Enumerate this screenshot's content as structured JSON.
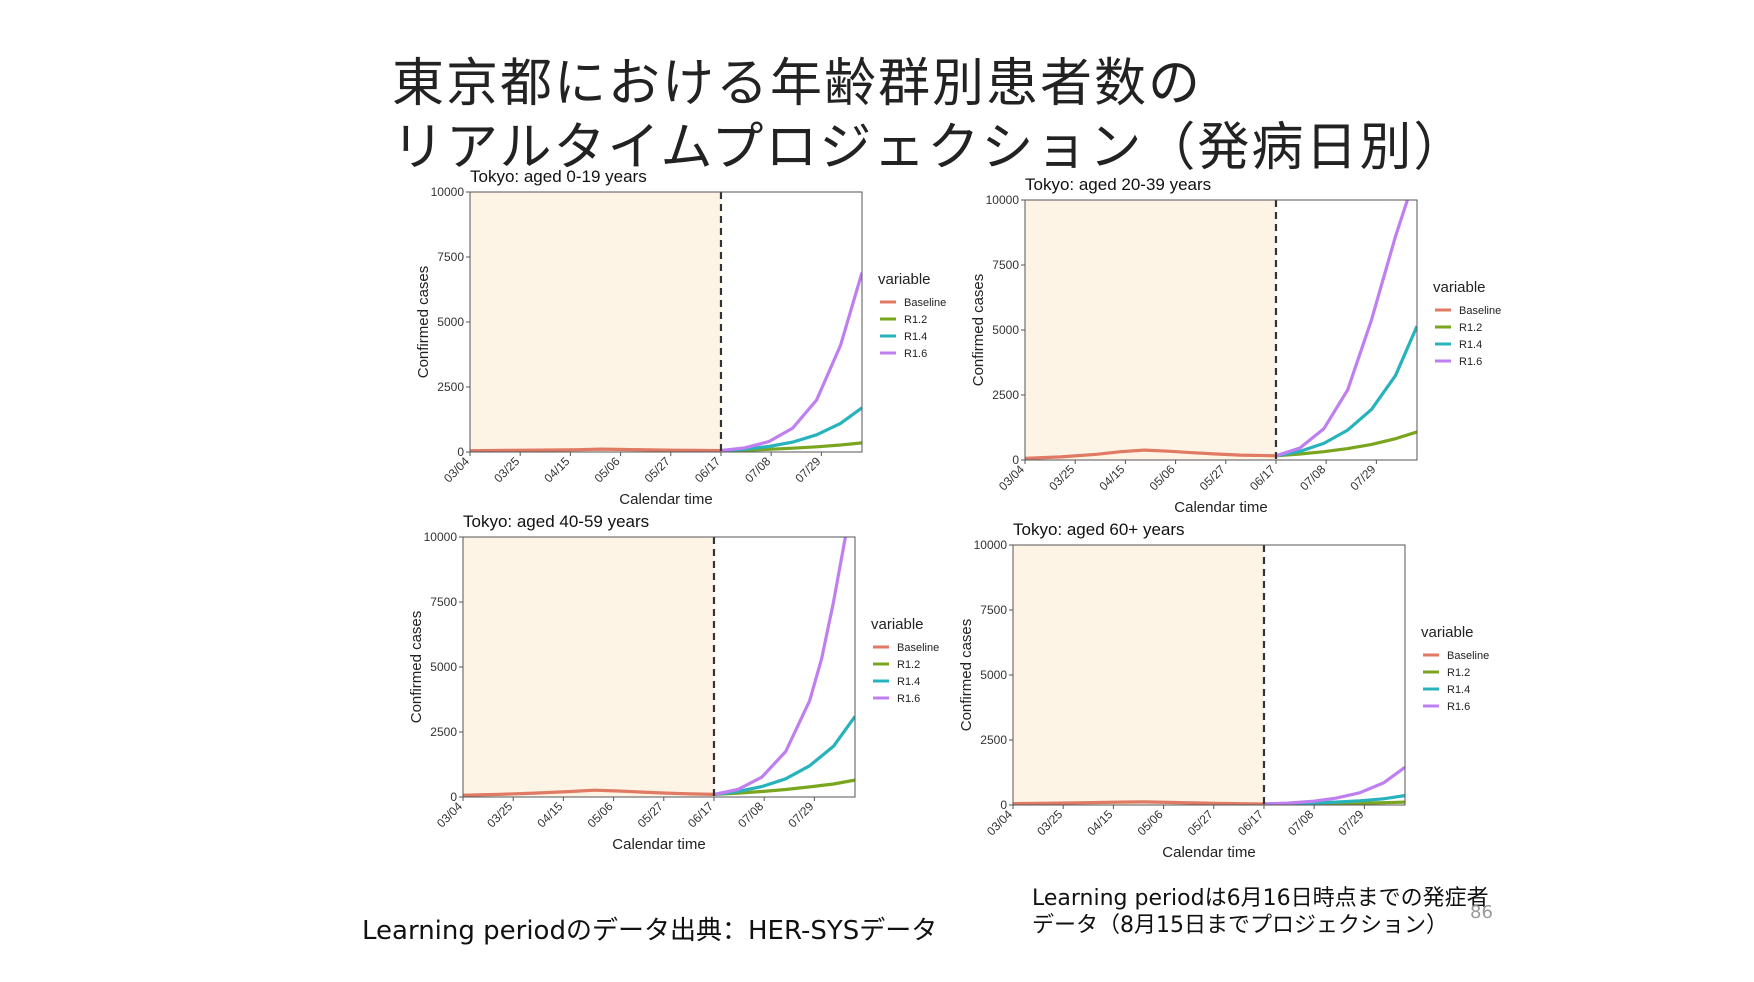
{
  "slide": {
    "title_line1": "東京都における年齢群別患者数の",
    "title_line2": "リアルタイムプロジェクション（発病日別）",
    "source_note": "Learning periodのデータ出典：HER-SYSデータ",
    "learning_note_line1": "Learning periodは6月16日時点までの発症者",
    "learning_note_line2": "データ（8月15日までプロジェクション）",
    "page_number": "86"
  },
  "colors": {
    "learning_bg": "#fdf4e5",
    "Baseline": "#e07a64",
    "R1.2": "#7aa61f",
    "R1.4": "#27b3be",
    "R1.6": "#c07ff0",
    "divider": "#333333"
  },
  "chart_data": [
    {
      "type": "line",
      "title": "Tokyo: aged 0-19 years",
      "xlabel": "Calendar time",
      "ylabel": "Confirmed cases",
      "x_tick_labels": [
        "03/04",
        "03/25",
        "04/15",
        "05/06",
        "05/27",
        "06/17",
        "07/08",
        "07/29"
      ],
      "x_range_days": [
        0,
        164
      ],
      "y_ticks": [
        0,
        2500,
        5000,
        7500,
        10000
      ],
      "ylim": [
        0,
        10000
      ],
      "learning_period_end_day": 105,
      "legend_title": "variable",
      "legend_position": "right",
      "grid": false,
      "series": [
        {
          "name": "Baseline",
          "x": [
            0,
            15,
            30,
            45,
            55,
            65,
            75,
            85,
            95,
            105
          ],
          "y": [
            50,
            60,
            75,
            90,
            110,
            95,
            80,
            70,
            60,
            55
          ]
        },
        {
          "name": "R1.2",
          "x": [
            105,
            115,
            125,
            135,
            145,
            155,
            164
          ],
          "y": [
            55,
            75,
            105,
            145,
            200,
            270,
            350
          ]
        },
        {
          "name": "R1.4",
          "x": [
            105,
            115,
            125,
            135,
            145,
            155,
            164
          ],
          "y": [
            55,
            110,
            210,
            380,
            660,
            1100,
            1700
          ]
        },
        {
          "name": "R1.6",
          "x": [
            105,
            115,
            125,
            135,
            145,
            155,
            164
          ],
          "y": [
            55,
            160,
            400,
            920,
            2000,
            4100,
            6900
          ]
        }
      ]
    },
    {
      "type": "line",
      "title": "Tokyo: aged 20-39 years",
      "xlabel": "Calendar time",
      "ylabel": "Confirmed cases",
      "x_tick_labels": [
        "03/04",
        "03/25",
        "04/15",
        "05/06",
        "05/27",
        "06/17",
        "07/08",
        "07/29"
      ],
      "x_range_days": [
        0,
        164
      ],
      "y_ticks": [
        0,
        2500,
        5000,
        7500,
        10000
      ],
      "ylim": [
        0,
        10000
      ],
      "learning_period_end_day": 105,
      "legend_title": "variable",
      "legend_position": "right",
      "grid": false,
      "series": [
        {
          "name": "Baseline",
          "x": [
            0,
            15,
            30,
            40,
            50,
            60,
            70,
            80,
            90,
            105
          ],
          "y": [
            60,
            120,
            220,
            320,
            380,
            340,
            280,
            230,
            190,
            160
          ]
        },
        {
          "name": "R1.2",
          "x": [
            105,
            115,
            125,
            135,
            145,
            155,
            164
          ],
          "y": [
            160,
            230,
            320,
            440,
            600,
            820,
            1080
          ]
        },
        {
          "name": "R1.4",
          "x": [
            105,
            115,
            125,
            135,
            145,
            155,
            164
          ],
          "y": [
            160,
            330,
            640,
            1150,
            1950,
            3250,
            5150
          ]
        },
        {
          "name": "R1.6",
          "x": [
            105,
            115,
            125,
            135,
            145,
            150,
            155,
            160
          ],
          "y": [
            160,
            460,
            1200,
            2700,
            5400,
            7000,
            8600,
            10000
          ]
        }
      ]
    },
    {
      "type": "line",
      "title": "Tokyo: aged 40-59 years",
      "xlabel": "Calendar time",
      "ylabel": "Confirmed cases",
      "x_tick_labels": [
        "03/04",
        "03/25",
        "04/15",
        "05/06",
        "05/27",
        "06/17",
        "07/08",
        "07/29"
      ],
      "x_range_days": [
        0,
        164
      ],
      "y_ticks": [
        0,
        2500,
        5000,
        7500,
        10000
      ],
      "ylim": [
        0,
        10000
      ],
      "learning_period_end_day": 105,
      "legend_title": "variable",
      "legend_position": "right",
      "grid": false,
      "series": [
        {
          "name": "Baseline",
          "x": [
            0,
            15,
            30,
            45,
            55,
            65,
            75,
            85,
            95,
            105
          ],
          "y": [
            70,
            100,
            150,
            210,
            260,
            230,
            190,
            150,
            120,
            100
          ]
        },
        {
          "name": "R1.2",
          "x": [
            105,
            115,
            125,
            135,
            145,
            155,
            164
          ],
          "y": [
            100,
            150,
            210,
            290,
            390,
            500,
            650
          ]
        },
        {
          "name": "R1.4",
          "x": [
            105,
            115,
            125,
            135,
            145,
            155,
            164
          ],
          "y": [
            100,
            210,
            400,
            700,
            1200,
            1950,
            3100
          ]
        },
        {
          "name": "R1.6",
          "x": [
            105,
            115,
            125,
            135,
            145,
            150,
            155,
            160
          ],
          "y": [
            100,
            290,
            760,
            1750,
            3700,
            5300,
            7500,
            10000
          ]
        }
      ]
    },
    {
      "type": "line",
      "title": "Tokyo: aged 60+ years",
      "xlabel": "Calendar time",
      "ylabel": "Confirmed cases",
      "x_tick_labels": [
        "03/04",
        "03/25",
        "04/15",
        "05/06",
        "05/27",
        "06/17",
        "07/08",
        "07/29"
      ],
      "x_range_days": [
        0,
        164
      ],
      "y_ticks": [
        0,
        2500,
        5000,
        7500,
        10000
      ],
      "ylim": [
        0,
        10000
      ],
      "learning_period_end_day": 105,
      "legend_title": "variable",
      "legend_position": "right",
      "grid": false,
      "series": [
        {
          "name": "Baseline",
          "x": [
            0,
            15,
            30,
            45,
            55,
            65,
            75,
            85,
            95,
            105
          ],
          "y": [
            50,
            70,
            90,
            110,
            120,
            100,
            80,
            60,
            50,
            40
          ]
        },
        {
          "name": "R1.2",
          "x": [
            105,
            115,
            125,
            135,
            145,
            155,
            164
          ],
          "y": [
            40,
            45,
            55,
            65,
            75,
            90,
            110
          ]
        },
        {
          "name": "R1.4",
          "x": [
            105,
            115,
            125,
            135,
            145,
            155,
            164
          ],
          "y": [
            40,
            55,
            80,
            110,
            160,
            240,
            360
          ]
        },
        {
          "name": "R1.6",
          "x": [
            105,
            115,
            125,
            135,
            145,
            155,
            164
          ],
          "y": [
            40,
            75,
            140,
            260,
            470,
            850,
            1450
          ]
        }
      ]
    }
  ]
}
